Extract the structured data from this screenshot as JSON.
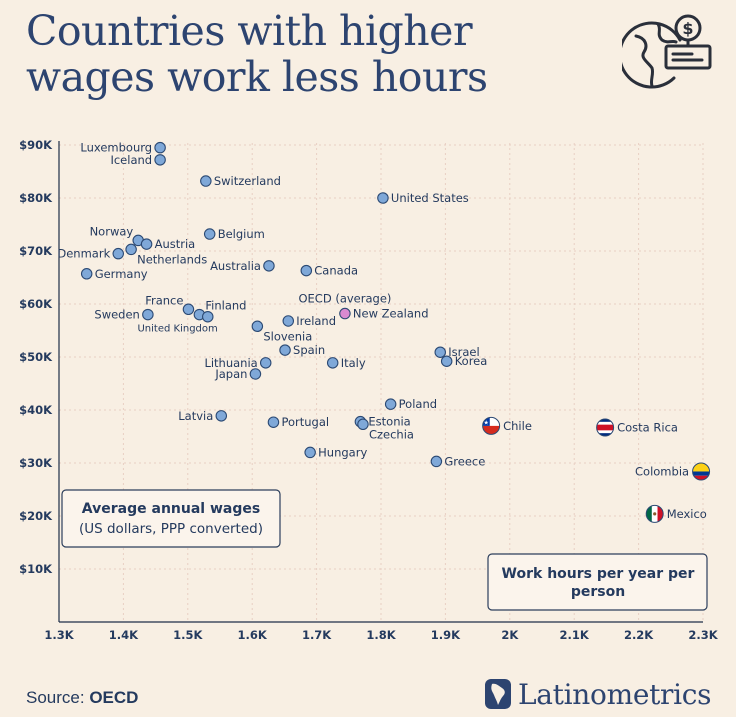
{
  "title": {
    "line1": "Countries with higher",
    "line2": "wages work less hours"
  },
  "icon": "globe-wage-icon",
  "source": {
    "label": "Source:",
    "value": "OECD"
  },
  "brand": {
    "name": "Latinometrics",
    "icon": "latam-map-icon"
  },
  "colors": {
    "background": "#f8efe3",
    "text": "#243a5e",
    "point_fill": "#7fa8d8",
    "point_stroke": "#2c4a74",
    "highlight_fill": "#d98ad1",
    "grid": "#e8cfc3"
  },
  "chart_data": {
    "type": "scatter",
    "xlabel": "Work hours per year per person",
    "ylabel": "Average annual wages",
    "ylabel_note": "(US dollars, PPP converted)",
    "xlim": [
      1300,
      2300
    ],
    "ylim": [
      0,
      90000
    ],
    "x_ticks": [
      1300,
      1400,
      1500,
      1600,
      1700,
      1800,
      1900,
      2000,
      2100,
      2200,
      2300
    ],
    "x_tick_labels": [
      "1.3K",
      "1.4K",
      "1.5K",
      "1.6K",
      "1.7K",
      "1.8K",
      "1.9K",
      "2K",
      "2.1K",
      "2.2K",
      "2.3K"
    ],
    "y_ticks": [
      10000,
      20000,
      30000,
      40000,
      50000,
      60000,
      70000,
      80000,
      90000
    ],
    "y_tick_labels": [
      "$10K",
      "$20K",
      "$30K",
      "$40K",
      "$50K",
      "$60K",
      "$70K",
      "$80K",
      "$90K"
    ],
    "points": [
      {
        "label": "Luxembourg",
        "x": 1457,
        "y": 89500,
        "pos": "left"
      },
      {
        "label": "Iceland",
        "x": 1457,
        "y": 87200,
        "pos": "left"
      },
      {
        "label": "Switzerland",
        "x": 1528,
        "y": 83200,
        "pos": "right"
      },
      {
        "label": "United States",
        "x": 1803,
        "y": 80000,
        "pos": "right"
      },
      {
        "label": "Belgium",
        "x": 1534,
        "y": 73200,
        "pos": "right"
      },
      {
        "label": "Norway",
        "x": 1423,
        "y": 72000,
        "pos": "upleft"
      },
      {
        "label": "Austria",
        "x": 1436,
        "y": 71300,
        "pos": "right"
      },
      {
        "label": "Denmark",
        "x": 1392,
        "y": 69500,
        "pos": "left"
      },
      {
        "label": "Netherlands",
        "x": 1412,
        "y": 70300,
        "pos": "downright"
      },
      {
        "label": "Australia",
        "x": 1626,
        "y": 67200,
        "pos": "left"
      },
      {
        "label": "Canada",
        "x": 1684,
        "y": 66300,
        "pos": "right"
      },
      {
        "label": "Germany",
        "x": 1343,
        "y": 65700,
        "pos": "right"
      },
      {
        "label": "OECD (average)",
        "x": 1744,
        "y": 58200,
        "pos": "above",
        "highlight": true
      },
      {
        "label": "New Zealand",
        "x": 1744,
        "y": 58200,
        "pos": "right",
        "highlight": true
      },
      {
        "label": "France",
        "x": 1501,
        "y": 59000,
        "pos": "upleft"
      },
      {
        "label": "Finland",
        "x": 1518,
        "y": 58000,
        "pos": "upright"
      },
      {
        "label": "United Kingdom",
        "x": 1531,
        "y": 57600,
        "pos": "downleft"
      },
      {
        "label": "Sweden",
        "x": 1438,
        "y": 58000,
        "pos": "left"
      },
      {
        "label": "Ireland",
        "x": 1656,
        "y": 56800,
        "pos": "right"
      },
      {
        "label": "Slovenia",
        "x": 1608,
        "y": 55800,
        "pos": "downright"
      },
      {
        "label": "Spain",
        "x": 1651,
        "y": 51300,
        "pos": "right"
      },
      {
        "label": "Lithuania",
        "x": 1621,
        "y": 48900,
        "pos": "left"
      },
      {
        "label": "Japan",
        "x": 1605,
        "y": 46800,
        "pos": "left"
      },
      {
        "label": "Italy",
        "x": 1725,
        "y": 48900,
        "pos": "right"
      },
      {
        "label": "Israel",
        "x": 1892,
        "y": 50900,
        "pos": "right"
      },
      {
        "label": "Korea",
        "x": 1902,
        "y": 49200,
        "pos": "right"
      },
      {
        "label": "Poland",
        "x": 1815,
        "y": 41100,
        "pos": "right"
      },
      {
        "label": "Latvia",
        "x": 1552,
        "y": 38900,
        "pos": "left"
      },
      {
        "label": "Portugal",
        "x": 1633,
        "y": 37700,
        "pos": "right"
      },
      {
        "label": "Estonia",
        "x": 1768,
        "y": 37800,
        "pos": "right"
      },
      {
        "label": "Czechia",
        "x": 1772,
        "y": 37300,
        "pos": "downright"
      },
      {
        "label": "Chile",
        "x": 1971,
        "y": 37000,
        "pos": "right",
        "flag": "chile"
      },
      {
        "label": "Costa Rica",
        "x": 2148,
        "y": 36700,
        "pos": "right",
        "flag": "costa-rica"
      },
      {
        "label": "Hungary",
        "x": 1690,
        "y": 32000,
        "pos": "right"
      },
      {
        "label": "Greece",
        "x": 1886,
        "y": 30300,
        "pos": "right"
      },
      {
        "label": "Colombia",
        "x": 2297,
        "y": 28400,
        "pos": "left",
        "flag": "colombia"
      },
      {
        "label": "Mexico",
        "x": 2225,
        "y": 20400,
        "pos": "right",
        "flag": "mexico"
      }
    ]
  }
}
